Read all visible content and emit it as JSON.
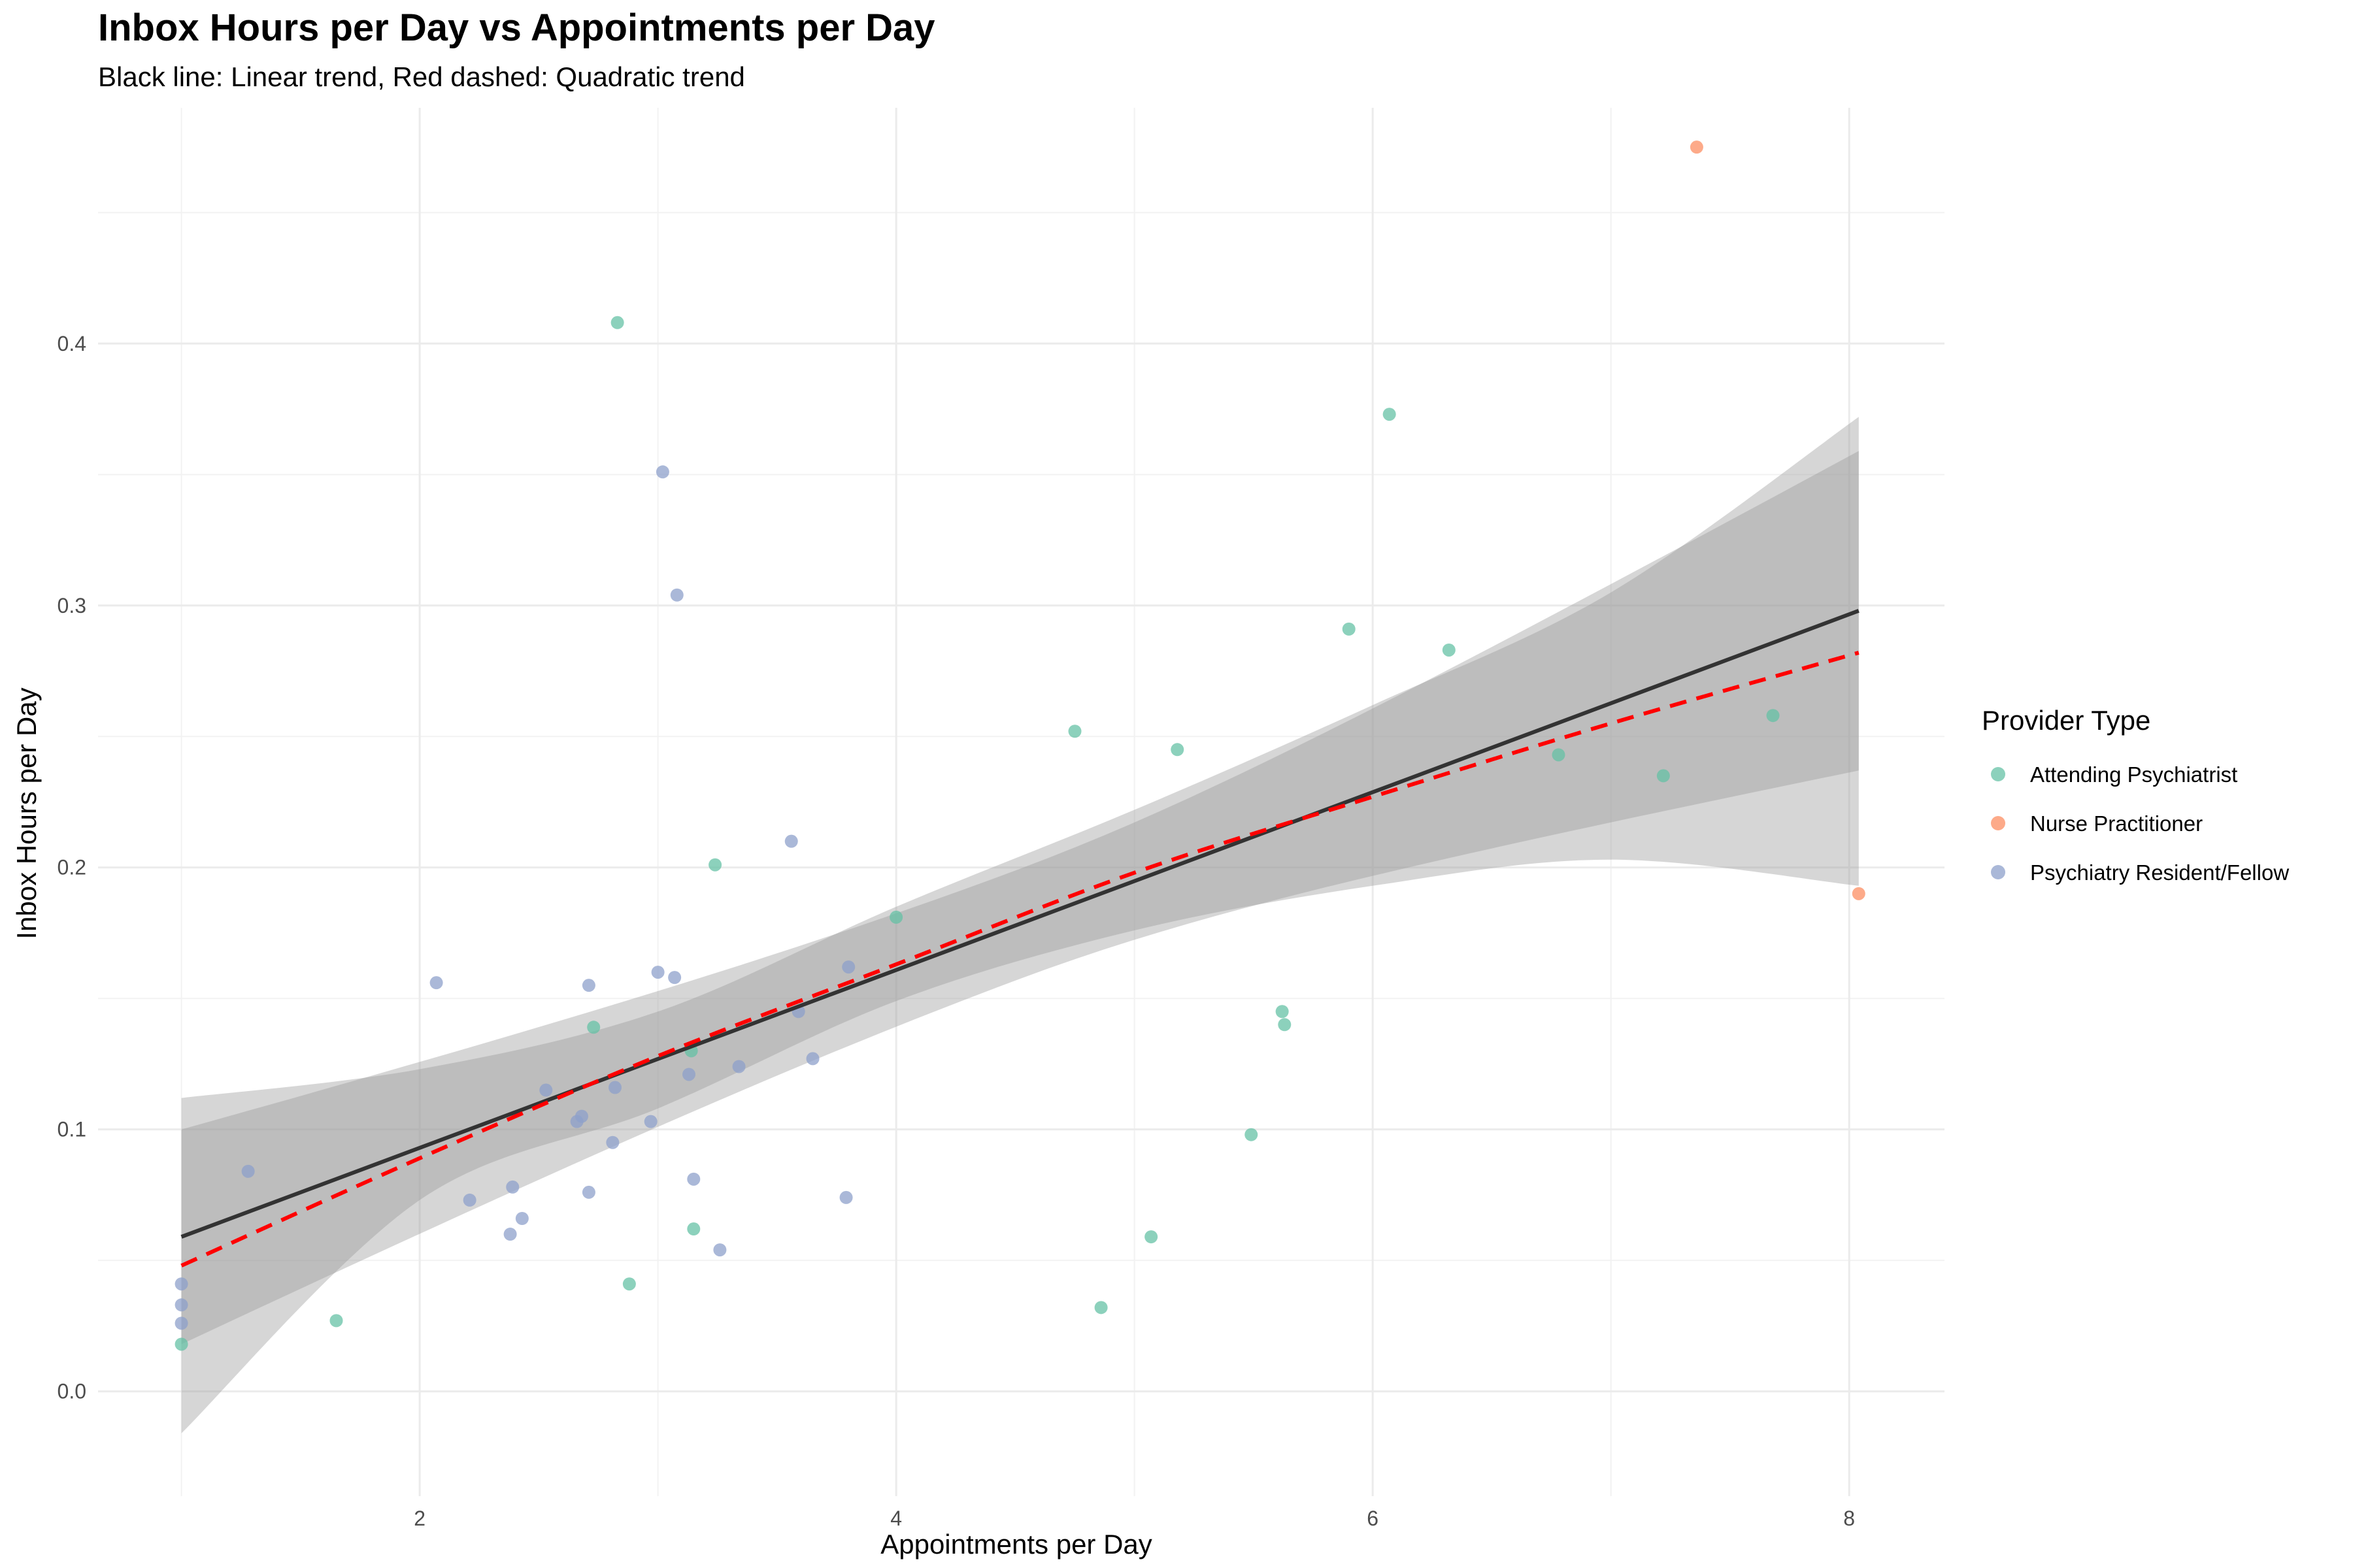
{
  "chart_data": {
    "type": "scatter",
    "title": "Inbox Hours per Day vs Appointments per Day",
    "subtitle": "Black line: Linear trend, Red dashed: Quadratic trend",
    "xlabel": "Appointments per Day",
    "ylabel": "Inbox Hours per Day",
    "xlim": [
      0.65,
      8.4
    ],
    "ylim": [
      -0.04,
      0.49
    ],
    "x_ticks": [
      2,
      4,
      6,
      8
    ],
    "y_ticks": [
      0.0,
      0.1,
      0.2,
      0.3,
      0.4
    ],
    "x_tick_labels": [
      "2",
      "4",
      "6",
      "8"
    ],
    "y_tick_labels": [
      "0.0",
      "0.1",
      "0.2",
      "0.3",
      "0.4"
    ],
    "grid": true,
    "legend": {
      "title": "Provider Type",
      "placement": "right"
    },
    "series": [
      {
        "name": "Attending Psychiatrist",
        "color": "#66c2a5",
        "points": [
          [
            1.0,
            0.018
          ],
          [
            1.65,
            0.027
          ],
          [
            2.73,
            0.139
          ],
          [
            2.83,
            0.408
          ],
          [
            2.88,
            0.041
          ],
          [
            3.14,
            0.13
          ],
          [
            3.15,
            0.062
          ],
          [
            3.24,
            0.201
          ],
          [
            4.0,
            0.181
          ],
          [
            4.75,
            0.252
          ],
          [
            4.86,
            0.032
          ],
          [
            5.07,
            0.059
          ],
          [
            5.18,
            0.245
          ],
          [
            5.49,
            0.098
          ],
          [
            5.62,
            0.145
          ],
          [
            5.63,
            0.14
          ],
          [
            5.9,
            0.291
          ],
          [
            6.07,
            0.373
          ],
          [
            6.32,
            0.283
          ],
          [
            6.78,
            0.243
          ],
          [
            7.22,
            0.235
          ],
          [
            7.68,
            0.258
          ]
        ]
      },
      {
        "name": "Nurse Practitioner",
        "color": "#fc8d62",
        "points": [
          [
            7.36,
            0.475
          ],
          [
            8.04,
            0.19
          ]
        ]
      },
      {
        "name": "Psychiatry Resident/Fellow",
        "color": "#8da0cb",
        "points": [
          [
            1.0,
            0.041
          ],
          [
            1.0,
            0.033
          ],
          [
            1.0,
            0.026
          ],
          [
            1.28,
            0.084
          ],
          [
            2.07,
            0.156
          ],
          [
            2.21,
            0.073
          ],
          [
            2.39,
            0.078
          ],
          [
            2.38,
            0.06
          ],
          [
            2.43,
            0.066
          ],
          [
            2.53,
            0.115
          ],
          [
            2.66,
            0.103
          ],
          [
            2.68,
            0.105
          ],
          [
            2.71,
            0.155
          ],
          [
            2.71,
            0.076
          ],
          [
            2.81,
            0.095
          ],
          [
            2.82,
            0.116
          ],
          [
            2.97,
            0.103
          ],
          [
            3.0,
            0.16
          ],
          [
            3.02,
            0.351
          ],
          [
            3.07,
            0.158
          ],
          [
            3.08,
            0.304
          ],
          [
            3.13,
            0.121
          ],
          [
            3.15,
            0.081
          ],
          [
            3.26,
            0.054
          ],
          [
            3.34,
            0.124
          ],
          [
            3.56,
            0.21
          ],
          [
            3.59,
            0.145
          ],
          [
            3.65,
            0.127
          ],
          [
            3.79,
            0.074
          ],
          [
            3.8,
            0.162
          ]
        ]
      }
    ],
    "linear_trend": {
      "color": "#333333",
      "x": [
        1.0,
        8.04
      ],
      "y": [
        0.059,
        0.298
      ],
      "band_lower": [
        0.018,
        0.237
      ],
      "band_upper": [
        0.1,
        0.359
      ]
    },
    "quadratic_trend": {
      "color": "#ff0000",
      "x": [
        1.0,
        2.0,
        3.0,
        4.0,
        5.0,
        6.0,
        7.0,
        8.04
      ],
      "y": [
        0.048,
        0.089,
        0.128,
        0.163,
        0.198,
        0.227,
        0.255,
        0.282
      ],
      "band_lower": [
        -0.016,
        0.073,
        0.108,
        0.149,
        0.176,
        0.193,
        0.203,
        0.193
      ],
      "band_upper": [
        0.112,
        0.123,
        0.145,
        0.185,
        0.222,
        0.262,
        0.305,
        0.372
      ]
    }
  }
}
